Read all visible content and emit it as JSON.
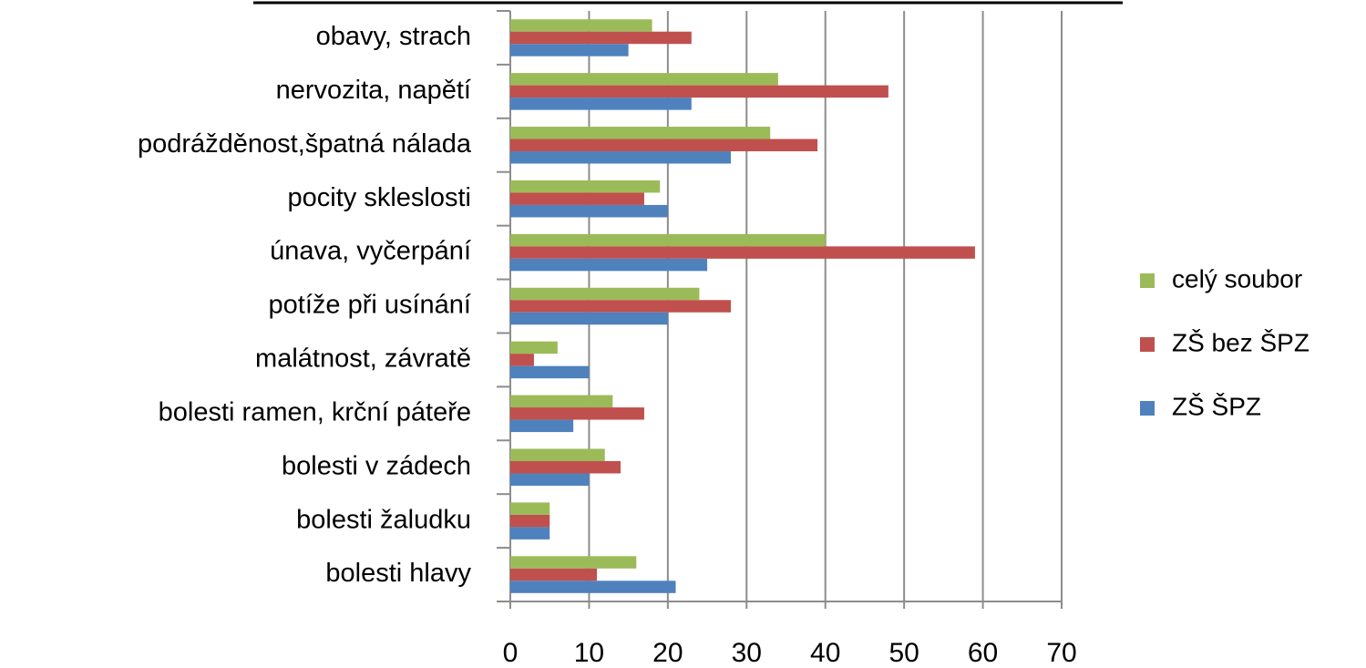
{
  "chart_data": {
    "type": "bar",
    "orientation": "horizontal",
    "categories": [
      "obavy, strach",
      "nervozita, napětí",
      "podrážděnost,špatná nálada",
      "pocity skleslosti",
      "únava, vyčerpání",
      "potíže při usínání",
      "malátnost, závratě",
      "bolesti ramen, krční páteře",
      "bolesti v zádech",
      "bolesti žaludku",
      "bolesti hlavy"
    ],
    "series": [
      {
        "name": "celý soubor",
        "color": "#9bbb59",
        "values": [
          18,
          34,
          33,
          19,
          40,
          24,
          6,
          13,
          12,
          5,
          16
        ]
      },
      {
        "name": "ZŠ bez ŠPZ",
        "color": "#c0504d",
        "values": [
          23,
          48,
          39,
          17,
          59,
          28,
          3,
          17,
          14,
          5,
          11
        ]
      },
      {
        "name": "ZŠ ŠPZ",
        "color": "#4f81bd",
        "values": [
          15,
          23,
          28,
          20,
          25,
          20,
          10,
          8,
          10,
          5,
          21
        ]
      }
    ],
    "xlim": [
      0,
      70
    ],
    "xticks": [
      0,
      10,
      20,
      30,
      40,
      50,
      60,
      70
    ],
    "grid": true,
    "legend": "right"
  }
}
